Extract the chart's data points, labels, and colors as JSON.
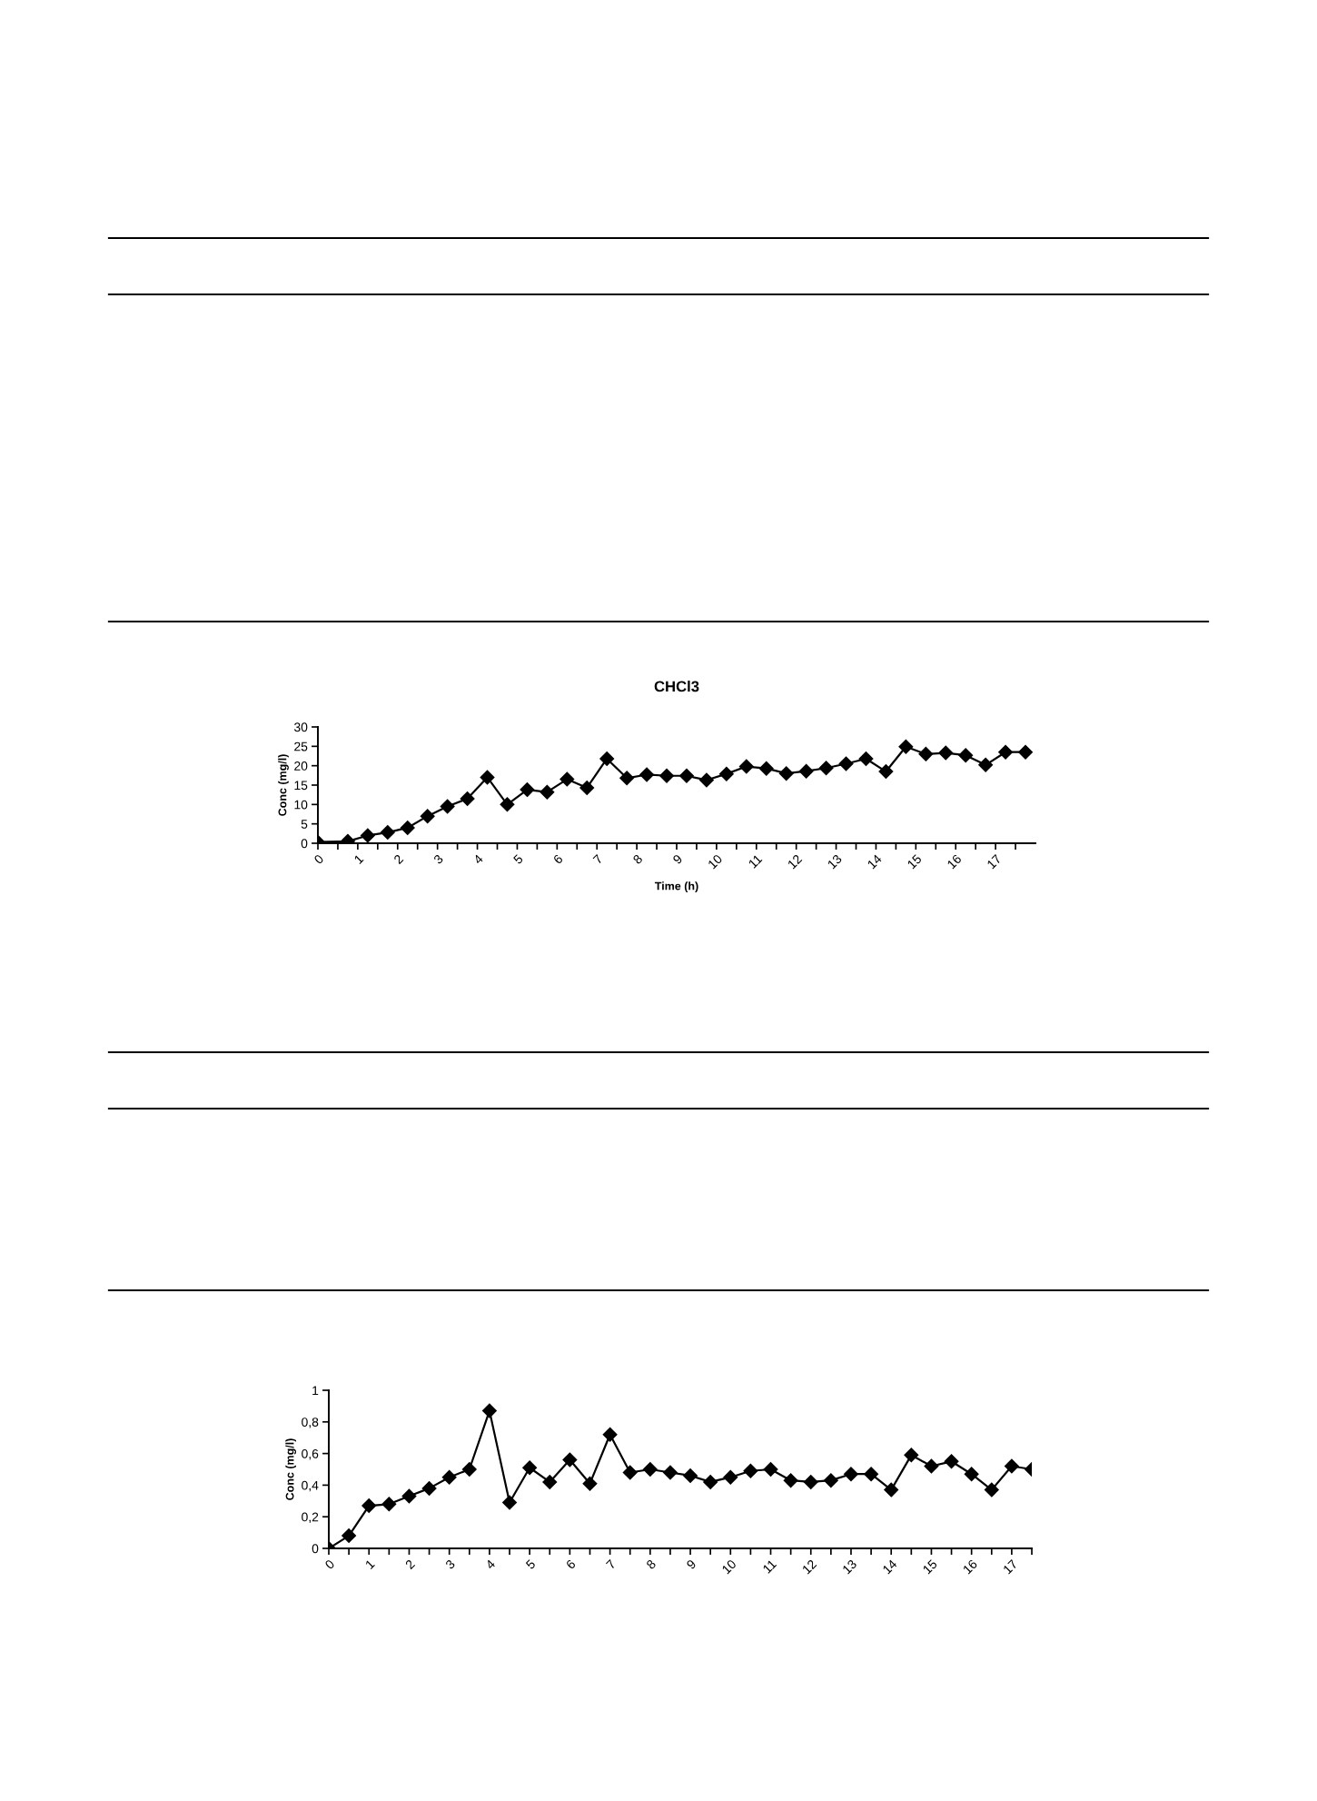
{
  "chart_data": [
    {
      "type": "line",
      "title": "CHCl3",
      "xlabel": "Time (h)",
      "ylabel": "Conc (mg/l)",
      "marker": "diamond",
      "line_style": "solid",
      "grid": false,
      "legend": false,
      "xlim": [
        0,
        18
      ],
      "ylim": [
        0,
        30
      ],
      "yticks": [
        0,
        5,
        10,
        15,
        20,
        25,
        30
      ],
      "xticks": [
        0,
        {
          "value": 0.5,
          "label": null
        },
        1,
        {
          "value": 1.5,
          "label": null
        },
        2,
        {
          "value": 2.5,
          "label": null
        },
        3,
        {
          "value": 3.5,
          "label": null
        },
        4,
        {
          "value": 4.5,
          "label": null
        },
        5,
        {
          "value": 5.5,
          "label": null
        },
        6,
        {
          "value": 6.5,
          "label": null
        },
        7,
        {
          "value": 7.5,
          "label": null
        },
        8,
        {
          "value": 8.5,
          "label": null
        },
        9,
        {
          "value": 9.5,
          "label": null
        },
        10,
        {
          "value": 10.5,
          "label": null
        },
        11,
        {
          "value": 11.5,
          "label": null
        },
        12,
        {
          "value": 12.5,
          "label": null
        },
        13,
        {
          "value": 13.5,
          "label": null
        },
        14,
        {
          "value": 14.5,
          "label": null
        },
        15,
        {
          "value": 15.5,
          "label": null
        },
        16,
        {
          "value": 16.5,
          "label": null
        },
        17,
        {
          "value": 17.5,
          "label": null
        }
      ],
      "series": [
        {
          "color": "#000000",
          "x": [
            0,
            0.75,
            1.25,
            1.75,
            2.25,
            2.75,
            3.25,
            3.75,
            4.25,
            4.75,
            5.25,
            5.75,
            6.25,
            6.75,
            7.25,
            7.75,
            8.25,
            8.75,
            9.25,
            9.75,
            10.25,
            10.75,
            11.25,
            11.75,
            12.25,
            12.75,
            13.25,
            13.75,
            14.25,
            14.75,
            15.25,
            15.75,
            16.25,
            16.75,
            17.25,
            17.75
          ],
          "values": [
            0.3,
            0.5,
            2,
            2.8,
            4,
            7,
            9.5,
            11.5,
            17,
            10,
            13.8,
            13.2,
            16.5,
            14.3,
            21.8,
            16.8,
            17.7,
            17.4,
            17.4,
            16.3,
            17.9,
            19.8,
            19.3,
            18,
            18.6,
            19.4,
            20.5,
            21.8,
            18.5,
            24.9,
            23,
            23.3,
            22.7,
            20.2,
            23.5,
            23.5
          ]
        }
      ]
    },
    {
      "type": "line",
      "ylabel": "Conc (mg/l)",
      "marker": "diamond",
      "line_style": "solid",
      "grid": false,
      "legend": false,
      "xlim": [
        0,
        17.5
      ],
      "ylim": [
        0,
        1
      ],
      "yticks": [
        0,
        {
          "value": 0.2,
          "label": "0,2"
        },
        {
          "value": 0.4,
          "label": "0,4"
        },
        {
          "value": 0.6,
          "label": "0,6"
        },
        {
          "value": 0.8,
          "label": "0,8"
        },
        1
      ],
      "xticks": [
        0,
        {
          "value": 0.5,
          "label": null
        },
        1,
        {
          "value": 1.5,
          "label": null
        },
        2,
        {
          "value": 2.5,
          "label": null
        },
        3,
        {
          "value": 3.5,
          "label": null
        },
        4,
        {
          "value": 4.5,
          "label": null
        },
        5,
        {
          "value": 5.5,
          "label": null
        },
        6,
        {
          "value": 6.5,
          "label": null
        },
        7,
        {
          "value": 7.5,
          "label": null
        },
        8,
        {
          "value": 8.5,
          "label": null
        },
        9,
        {
          "value": 9.5,
          "label": null
        },
        10,
        {
          "value": 10.5,
          "label": null
        },
        11,
        {
          "value": 11.5,
          "label": null
        },
        12,
        {
          "value": 12.5,
          "label": null
        },
        13,
        {
          "value": 13.5,
          "label": null
        },
        14,
        {
          "value": 14.5,
          "label": null
        },
        15,
        {
          "value": 15.5,
          "label": null
        },
        16,
        {
          "value": 16.5,
          "label": null
        },
        17,
        {
          "value": 17.5,
          "label": null
        }
      ],
      "series": [
        {
          "color": "#000000",
          "x": [
            0,
            0.5,
            1,
            1.5,
            2,
            2.5,
            3,
            3.5,
            4,
            4.5,
            5,
            5.5,
            6,
            6.5,
            7,
            7.5,
            8,
            8.5,
            9,
            9.5,
            10,
            10.5,
            11,
            11.5,
            12,
            12.5,
            13,
            13.5,
            14,
            14.5,
            15,
            15.5,
            16,
            16.5,
            17,
            17.5
          ],
          "values": [
            0,
            0.08,
            0.27,
            0.28,
            0.33,
            0.38,
            0.45,
            0.5,
            0.87,
            0.29,
            0.51,
            0.42,
            0.56,
            0.41,
            0.72,
            0.48,
            0.5,
            0.48,
            0.46,
            0.42,
            0.45,
            0.49,
            0.5,
            0.43,
            0.42,
            0.43,
            0.47,
            0.47,
            0.37,
            0.59,
            0.52,
            0.55,
            0.47,
            0.37,
            0.52,
            0.5
          ]
        }
      ]
    }
  ]
}
